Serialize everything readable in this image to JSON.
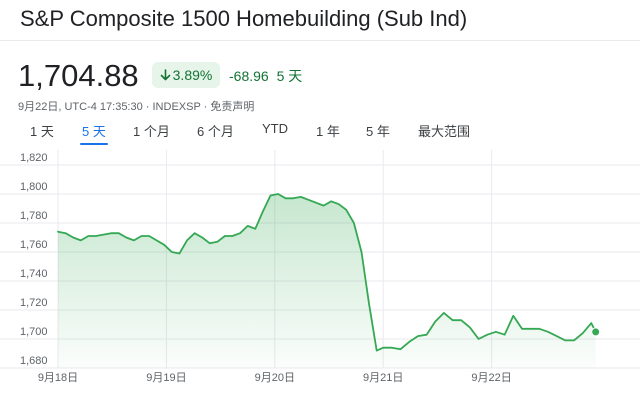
{
  "header": {
    "title": "S&P Composite 1500 Homebuilding (Sub Ind)"
  },
  "quote": {
    "price": "1,704.88",
    "percent_change": "3.89%",
    "direction": "down",
    "change": "-68.96",
    "period": "5 天",
    "meta": "9月22日, UTC-4 17:35:30 · INDEXSP · 免责声明",
    "accent_color": "#137333",
    "chip_bg_color": "#e6f4ea"
  },
  "range_tabs": [
    {
      "label": "1 天",
      "active": false
    },
    {
      "label": "5 天",
      "active": true
    },
    {
      "label": "1 个月",
      "active": false
    },
    {
      "label": "6 个月",
      "active": false
    },
    {
      "label": "YTD",
      "active": false
    },
    {
      "label": "1 年",
      "active": false
    },
    {
      "label": "5 年",
      "active": false
    },
    {
      "label": "最大范围",
      "active": false
    }
  ],
  "chart_data": {
    "type": "area",
    "ylim": [
      1680,
      1820
    ],
    "yticks": [
      1680,
      1700,
      1720,
      1740,
      1760,
      1780,
      1800,
      1820
    ],
    "ytick_labels": [
      "1,680",
      "1,700",
      "1,720",
      "1,740",
      "1,760",
      "1,780",
      "1,800",
      "1,820"
    ],
    "xlim": [
      0,
      5
    ],
    "xticks": [
      0,
      1,
      2,
      3,
      4
    ],
    "xtick_labels": [
      "9月18日",
      "9月19日",
      "9月20日",
      "9月21日",
      "9月22日"
    ],
    "grid": true,
    "line_color": "#34a853",
    "series": [
      {
        "x": [
          0,
          0.07,
          0.14,
          0.21,
          0.28,
          0.35,
          0.42,
          0.49,
          0.56,
          0.63,
          0.7,
          0.77,
          0.84,
          0.91,
          0.98,
          1.05,
          1.12,
          1.19,
          1.26,
          1.33,
          1.4,
          1.47,
          1.54,
          1.61,
          1.68,
          1.75,
          1.82,
          1.89,
          1.96,
          2.03,
          2.1,
          2.17,
          2.24,
          2.31,
          2.38,
          2.45,
          2.52,
          2.59,
          2.66,
          2.73,
          2.8,
          2.87,
          2.94,
          3.0,
          3.08,
          3.16,
          3.24,
          3.32,
          3.4,
          3.48,
          3.56,
          3.64,
          3.72,
          3.8,
          3.88,
          3.96,
          4.04,
          4.12,
          4.2,
          4.28,
          4.36,
          4.44,
          4.52,
          4.6,
          4.68,
          4.76,
          4.84,
          4.92,
          4.96
        ],
        "y": [
          1774,
          1773,
          1770,
          1768,
          1771,
          1771,
          1772,
          1773,
          1773,
          1770,
          1768,
          1771,
          1771,
          1768,
          1765,
          1760,
          1759,
          1768,
          1773,
          1770,
          1766,
          1767,
          1771,
          1771,
          1773,
          1778,
          1776,
          1788,
          1799,
          1800,
          1797,
          1797,
          1798,
          1796,
          1794,
          1792,
          1795,
          1793,
          1789,
          1780,
          1760,
          1724,
          1692,
          1694,
          1694,
          1693,
          1698,
          1702,
          1703,
          1712,
          1718,
          1713,
          1713,
          1708,
          1700,
          1703,
          1705,
          1703,
          1716,
          1707,
          1707,
          1707,
          1705,
          1702,
          1699,
          1699,
          1704,
          1711,
          1705
        ],
        "end_value": 1704.88
      }
    ]
  }
}
